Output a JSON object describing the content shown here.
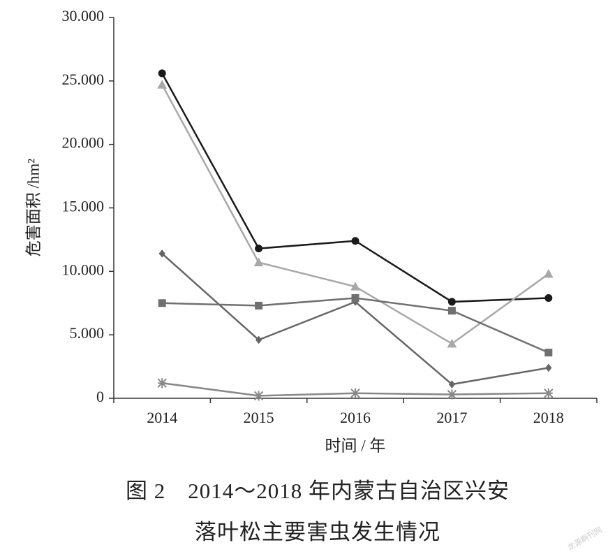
{
  "chart_data": {
    "type": "line",
    "categories": [
      "2014",
      "2015",
      "2016",
      "2017",
      "2018"
    ],
    "series": [
      {
        "color": "#1a1a1a",
        "marker": "circle",
        "values": [
          25600,
          11800,
          12400,
          7600,
          7900
        ]
      },
      {
        "color": "#a8a8a8",
        "marker": "triangle",
        "values": [
          24700,
          10700,
          8800,
          4300,
          9800
        ]
      },
      {
        "color": "#666666",
        "marker": "diamond",
        "values": [
          11400,
          4600,
          7600,
          1100,
          2400
        ]
      },
      {
        "color": "#707070",
        "marker": "square",
        "values": [
          7500,
          7300,
          7900,
          6900,
          3600
        ]
      },
      {
        "color": "#888888",
        "marker": "asterisk",
        "values": [
          1200,
          200,
          400,
          300,
          400
        ]
      }
    ],
    "ylim": [
      0,
      30000
    ],
    "yticks": [
      0,
      {
        "value": 5000,
        "label": "5.000"
      },
      {
        "value": 10000,
        "label": "10.000"
      },
      {
        "value": 15000,
        "label": "15.000"
      },
      {
        "value": 20000,
        "label": "20.000"
      },
      {
        "value": 25000,
        "label": "25.000"
      },
      {
        "value": 30000,
        "label": "30.000"
      }
    ],
    "ylabel": "危害面积 /hm²",
    "xlabel": "时间 / 年",
    "caption": [
      "图 2　2014～2018 年内蒙古自治区兴安",
      "落叶松主要害虫发生情况"
    ],
    "watermark": "龙源期刊网"
  }
}
